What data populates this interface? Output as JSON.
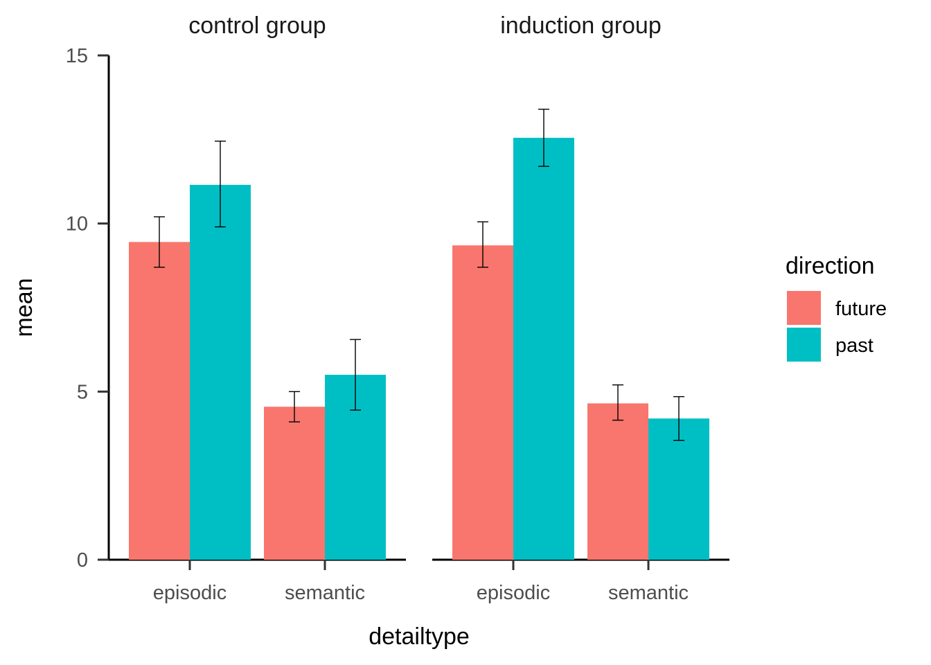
{
  "chart_data": {
    "type": "bar",
    "facets": [
      "control group",
      "induction group"
    ],
    "categories": [
      "episodic",
      "semantic"
    ],
    "xlabel": "detailtype",
    "ylabel": "mean",
    "ylim": [
      0,
      15
    ],
    "yticks": [
      0,
      5,
      10,
      15
    ],
    "grid": false,
    "legend": {
      "title": "direction",
      "position": "right",
      "entries": [
        {
          "name": "future",
          "color": "#F8766D"
        },
        {
          "name": "past",
          "color": "#00BFC4"
        }
      ]
    },
    "panels": [
      {
        "facet": "control group",
        "series": [
          {
            "name": "future",
            "values": [
              9.45,
              4.55
            ],
            "err_low": [
              8.7,
              4.1
            ],
            "err_high": [
              10.2,
              5.0
            ]
          },
          {
            "name": "past",
            "values": [
              11.15,
              5.5
            ],
            "err_low": [
              9.9,
              4.45
            ],
            "err_high": [
              12.45,
              6.55
            ]
          }
        ]
      },
      {
        "facet": "induction group",
        "series": [
          {
            "name": "future",
            "values": [
              9.35,
              4.65
            ],
            "err_low": [
              8.7,
              4.15
            ],
            "err_high": [
              10.05,
              5.2
            ]
          },
          {
            "name": "past",
            "values": [
              12.55,
              4.2
            ],
            "err_low": [
              11.7,
              3.55
            ],
            "err_high": [
              13.4,
              4.85
            ]
          }
        ]
      }
    ]
  }
}
